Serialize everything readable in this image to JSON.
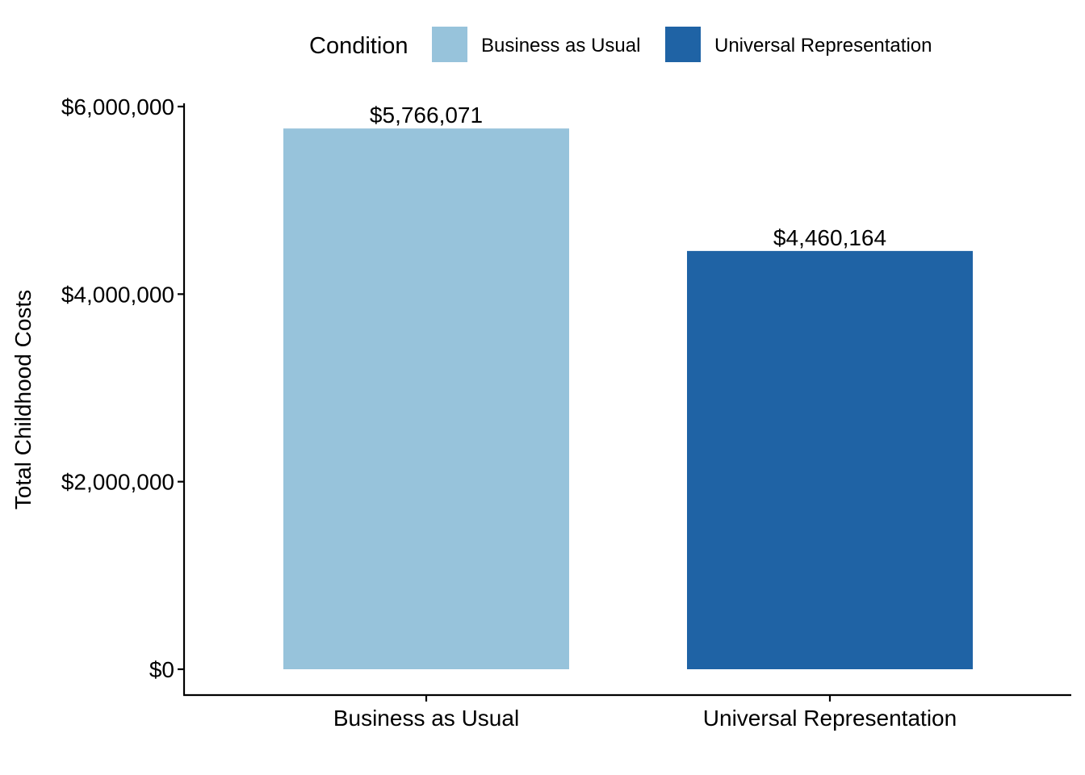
{
  "chart_data": {
    "type": "bar",
    "categories": [
      "Business as Usual",
      "Universal Representation"
    ],
    "values": [
      5766071,
      4460164
    ],
    "data_labels": [
      "$5,766,071",
      "$4,460,164"
    ],
    "colors": [
      "#97c3db",
      "#1f63a5"
    ],
    "title": "",
    "xlabel": "",
    "ylabel": "Total Childhood Costs",
    "ylim": [
      0,
      6000000
    ],
    "yticks": [
      0,
      2000000,
      4000000,
      6000000
    ],
    "ytick_labels": [
      "$0",
      "$2,000,000",
      "$4,000,000",
      "$6,000,000"
    ],
    "grid": false,
    "legend": {
      "title": "Condition",
      "position": "top",
      "entries": [
        "Business as Usual",
        "Universal Representation"
      ]
    }
  }
}
